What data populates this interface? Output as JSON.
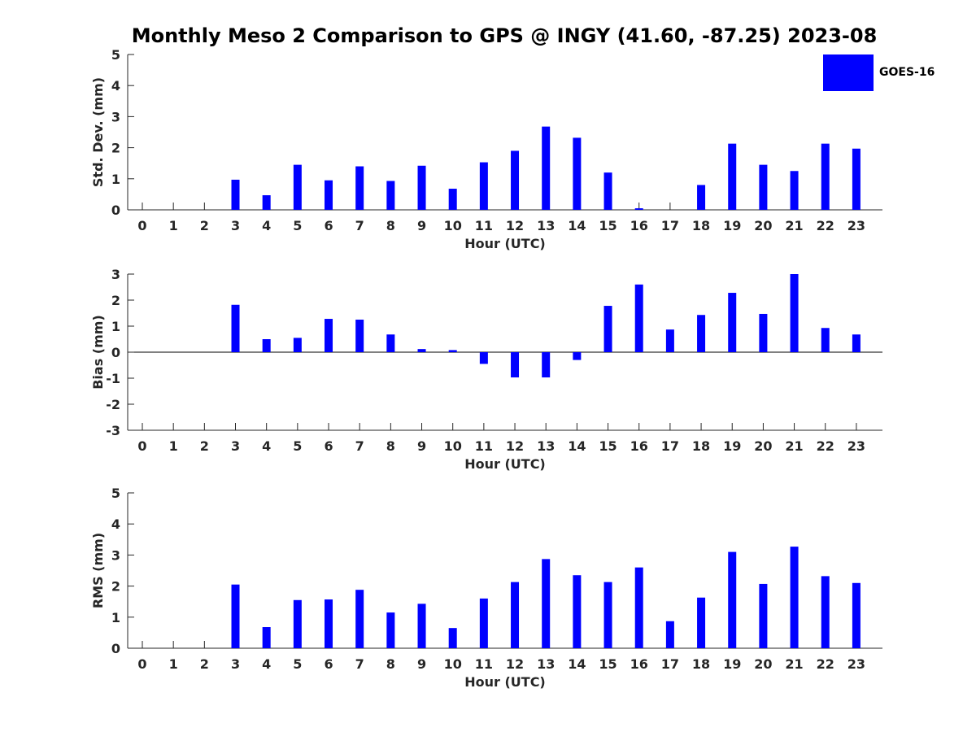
{
  "title": "Monthly Meso 2 Comparison to GPS @ INGY (41.60, -87.25) 2023-08",
  "legend": {
    "label": "GOES-16",
    "color": "#0000ff"
  },
  "colors": {
    "bar": "#0000ff",
    "axis": "#262626",
    "zero_line": "#000000"
  },
  "chart_data": [
    {
      "type": "bar",
      "x": [
        0,
        1,
        2,
        3,
        4,
        5,
        6,
        7,
        8,
        9,
        10,
        11,
        12,
        13,
        14,
        15,
        16,
        17,
        18,
        19,
        20,
        21,
        22,
        23
      ],
      "categories": [
        "0",
        "1",
        "2",
        "3",
        "4",
        "5",
        "6",
        "7",
        "8",
        "9",
        "10",
        "11",
        "12",
        "13",
        "14",
        "15",
        "16",
        "17",
        "18",
        "19",
        "20",
        "21",
        "22",
        "23"
      ],
      "values": [
        null,
        null,
        null,
        0.97,
        0.47,
        1.45,
        0.95,
        1.4,
        0.93,
        1.42,
        0.68,
        1.53,
        1.9,
        2.68,
        2.32,
        1.2,
        0.05,
        null,
        0.8,
        2.13,
        1.45,
        1.25,
        2.13,
        1.97
      ],
      "series": [
        {
          "name": "GOES-16",
          "values": [
            null,
            null,
            null,
            0.97,
            0.47,
            1.45,
            0.95,
            1.4,
            0.93,
            1.42,
            0.68,
            1.53,
            1.9,
            2.68,
            2.32,
            1.2,
            0.05,
            null,
            0.8,
            2.13,
            1.45,
            1.25,
            2.13,
            1.97
          ]
        }
      ],
      "xlabel": "Hour (UTC)",
      "ylabel": "Std. Dev. (mm)",
      "ylim": [
        0,
        5
      ],
      "yticks": [
        0,
        1,
        2,
        3,
        4,
        5
      ],
      "grid": false
    },
    {
      "type": "bar",
      "x": [
        0,
        1,
        2,
        3,
        4,
        5,
        6,
        7,
        8,
        9,
        10,
        11,
        12,
        13,
        14,
        15,
        16,
        17,
        18,
        19,
        20,
        21,
        22,
        23
      ],
      "categories": [
        "0",
        "1",
        "2",
        "3",
        "4",
        "5",
        "6",
        "7",
        "8",
        "9",
        "10",
        "11",
        "12",
        "13",
        "14",
        "15",
        "16",
        "17",
        "18",
        "19",
        "20",
        "21",
        "22",
        "23"
      ],
      "values": [
        null,
        null,
        null,
        1.82,
        0.5,
        0.55,
        1.28,
        1.25,
        0.68,
        0.12,
        0.08,
        -0.45,
        -0.97,
        -0.97,
        -0.3,
        1.78,
        2.6,
        0.87,
        1.43,
        2.28,
        1.47,
        3.0,
        0.93,
        0.68
      ],
      "series": [
        {
          "name": "GOES-16",
          "values": [
            null,
            null,
            null,
            1.82,
            0.5,
            0.55,
            1.28,
            1.25,
            0.68,
            0.12,
            0.08,
            -0.45,
            -0.97,
            -0.97,
            -0.3,
            1.78,
            2.6,
            0.87,
            1.43,
            2.28,
            1.47,
            3.0,
            0.93,
            0.68
          ]
        }
      ],
      "xlabel": "Hour (UTC)",
      "ylabel": "Bias (mm)",
      "ylim": [
        -3,
        3
      ],
      "yticks": [
        -3,
        -2,
        -1,
        0,
        1,
        2,
        3
      ],
      "grid": false
    },
    {
      "type": "bar",
      "x": [
        0,
        1,
        2,
        3,
        4,
        5,
        6,
        7,
        8,
        9,
        10,
        11,
        12,
        13,
        14,
        15,
        16,
        17,
        18,
        19,
        20,
        21,
        22,
        23
      ],
      "categories": [
        "0",
        "1",
        "2",
        "3",
        "4",
        "5",
        "6",
        "7",
        "8",
        "9",
        "10",
        "11",
        "12",
        "13",
        "14",
        "15",
        "16",
        "17",
        "18",
        "19",
        "20",
        "21",
        "22",
        "23"
      ],
      "values": [
        null,
        null,
        null,
        2.05,
        0.68,
        1.55,
        1.57,
        1.88,
        1.15,
        1.43,
        0.65,
        1.6,
        2.13,
        2.87,
        2.35,
        2.13,
        2.6,
        0.87,
        1.63,
        3.1,
        2.07,
        3.27,
        2.32,
        2.1
      ],
      "series": [
        {
          "name": "GOES-16",
          "values": [
            null,
            null,
            null,
            2.05,
            0.68,
            1.55,
            1.57,
            1.88,
            1.15,
            1.43,
            0.65,
            1.6,
            2.13,
            2.87,
            2.35,
            2.13,
            2.6,
            0.87,
            1.63,
            3.1,
            2.07,
            3.27,
            2.32,
            2.1
          ]
        }
      ],
      "xlabel": "Hour (UTC)",
      "ylabel": "RMS (mm)",
      "ylim": [
        0,
        5
      ],
      "yticks": [
        0,
        1,
        2,
        3,
        4,
        5
      ],
      "grid": false
    }
  ]
}
